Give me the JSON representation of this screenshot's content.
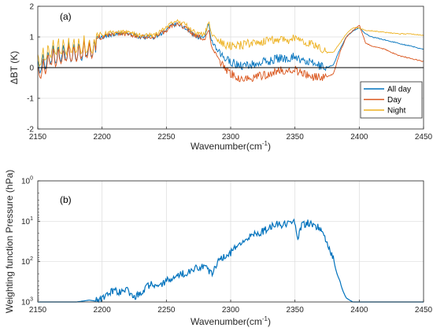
{
  "chart_data": [
    {
      "type": "line",
      "panel_label": "(a)",
      "xlabel_main": "Wavenumber(cm",
      "xlabel_sup": "-1",
      "xlabel_end": ")",
      "ylabel": "ΔBT (K)",
      "xlim": [
        2150,
        2450
      ],
      "ylim": [
        -2,
        2
      ],
      "xticks": [
        "2150",
        "2200",
        "2250",
        "2300",
        "2350",
        "2400",
        "2450"
      ],
      "yticks": [
        "-2",
        "-1",
        "0",
        "1",
        "2"
      ],
      "grid": true,
      "zero_line": true,
      "legend_position": "bottom-right",
      "series": [
        {
          "name": "All day",
          "color": "#0072BD",
          "x": [
            2150,
            2160,
            2170,
            2180,
            2190,
            2200,
            2210,
            2220,
            2230,
            2240,
            2250,
            2255,
            2260,
            2265,
            2270,
            2275,
            2280,
            2283,
            2285,
            2290,
            2295,
            2300,
            2305,
            2310,
            2315,
            2320,
            2325,
            2330,
            2335,
            2340,
            2345,
            2350,
            2355,
            2360,
            2365,
            2370,
            2375,
            2380,
            2385,
            2390,
            2395,
            2400,
            2405,
            2410,
            2420,
            2430,
            2440,
            2450
          ],
          "y": [
            0.3,
            0.7,
            0.8,
            0.8,
            0.9,
            1.0,
            1.1,
            1.1,
            1.0,
            1.0,
            1.2,
            1.4,
            1.4,
            1.3,
            1.1,
            1.0,
            1.0,
            1.4,
            0.9,
            0.5,
            0.3,
            0.2,
            0.1,
            0.05,
            0.1,
            0.1,
            0.2,
            0.2,
            0.3,
            0.3,
            0.3,
            0.4,
            0.2,
            0.2,
            0.1,
            0.05,
            0.0,
            0.1,
            0.6,
            1.0,
            1.2,
            1.3,
            1.1,
            1.0,
            0.9,
            0.8,
            0.7,
            0.6
          ]
        },
        {
          "name": "Day",
          "color": "#D95319",
          "x": [
            2150,
            2160,
            2170,
            2180,
            2190,
            2200,
            2210,
            2220,
            2230,
            2240,
            2250,
            2255,
            2260,
            2265,
            2270,
            2275,
            2280,
            2283,
            2285,
            2290,
            2295,
            2300,
            2305,
            2310,
            2315,
            2320,
            2325,
            2330,
            2335,
            2340,
            2345,
            2350,
            2355,
            2360,
            2365,
            2370,
            2375,
            2380,
            2385,
            2390,
            2395,
            2400,
            2405,
            2410,
            2420,
            2430,
            2440,
            2450
          ],
          "y": [
            0.1,
            0.6,
            0.7,
            0.8,
            0.9,
            1.0,
            1.1,
            1.1,
            1.0,
            1.0,
            1.2,
            1.4,
            1.4,
            1.3,
            1.1,
            1.0,
            0.9,
            1.3,
            0.7,
            0.3,
            0.0,
            -0.2,
            -0.3,
            -0.4,
            -0.35,
            -0.3,
            -0.25,
            -0.2,
            -0.1,
            -0.1,
            -0.1,
            -0.05,
            -0.2,
            -0.25,
            -0.3,
            -0.3,
            -0.3,
            -0.2,
            0.5,
            1.0,
            1.2,
            1.4,
            0.8,
            0.7,
            0.6,
            0.4,
            0.3,
            0.2
          ]
        },
        {
          "name": "Night",
          "color": "#EDB120",
          "x": [
            2150,
            2160,
            2170,
            2180,
            2190,
            2200,
            2210,
            2220,
            2230,
            2240,
            2250,
            2255,
            2260,
            2265,
            2270,
            2275,
            2280,
            2283,
            2285,
            2290,
            2295,
            2300,
            2305,
            2310,
            2315,
            2320,
            2325,
            2330,
            2335,
            2340,
            2345,
            2350,
            2355,
            2360,
            2365,
            2370,
            2375,
            2380,
            2385,
            2390,
            2395,
            2400,
            2405,
            2410,
            2420,
            2430,
            2440,
            2450
          ],
          "y": [
            0.5,
            0.9,
            1.0,
            1.0,
            1.0,
            1.1,
            1.15,
            1.15,
            1.05,
            1.05,
            1.3,
            1.5,
            1.5,
            1.4,
            1.2,
            1.1,
            1.1,
            1.5,
            1.1,
            0.9,
            0.75,
            0.7,
            0.7,
            0.75,
            0.8,
            0.8,
            0.85,
            0.9,
            0.9,
            0.95,
            0.9,
            1.0,
            0.85,
            0.8,
            0.75,
            0.6,
            0.5,
            0.5,
            0.8,
            1.1,
            1.3,
            1.3,
            1.2,
            1.2,
            1.15,
            1.1,
            1.1,
            1.05
          ]
        }
      ]
    },
    {
      "type": "line",
      "panel_label": "(b)",
      "xlabel_main": "Wavenumber(cm",
      "xlabel_sup": "-1",
      "xlabel_end": ")",
      "ylabel": "Weighting function Pressure (hPa)",
      "xlim": [
        2150,
        2450
      ],
      "ylim": [
        1000,
        1
      ],
      "yscale": "log",
      "yaxis_reversed": true,
      "xticks": [
        "2150",
        "2200",
        "2250",
        "2300",
        "2350",
        "2400",
        "2450"
      ],
      "yticks": [
        {
          "base": "10",
          "exp": "0"
        },
        {
          "base": "10",
          "exp": "1"
        },
        {
          "base": "10",
          "exp": "2"
        },
        {
          "base": "10",
          "exp": "3"
        }
      ],
      "grid": true,
      "series": [
        {
          "color": "#0072BD",
          "x": [
            2150,
            2180,
            2185,
            2190,
            2195,
            2200,
            2205,
            2210,
            2215,
            2220,
            2225,
            2230,
            2235,
            2240,
            2245,
            2250,
            2255,
            2260,
            2265,
            2270,
            2275,
            2280,
            2285,
            2290,
            2295,
            2300,
            2305,
            2310,
            2315,
            2320,
            2325,
            2330,
            2335,
            2340,
            2345,
            2350,
            2352,
            2355,
            2360,
            2365,
            2370,
            2375,
            2380,
            2385,
            2390,
            2395,
            2400,
            2410,
            2420,
            2450
          ],
          "y": [
            1000,
            1000,
            950,
            900,
            950,
            800,
            600,
            500,
            600,
            500,
            800,
            600,
            400,
            350,
            400,
            300,
            250,
            200,
            200,
            150,
            150,
            120,
            200,
            100,
            70,
            60,
            40,
            30,
            25,
            20,
            18,
            14,
            12,
            12,
            12,
            11,
            25,
            13,
            11,
            12,
            16,
            30,
            80,
            300,
            800,
            1000,
            1000,
            1000,
            1000,
            1000
          ]
        }
      ]
    }
  ]
}
